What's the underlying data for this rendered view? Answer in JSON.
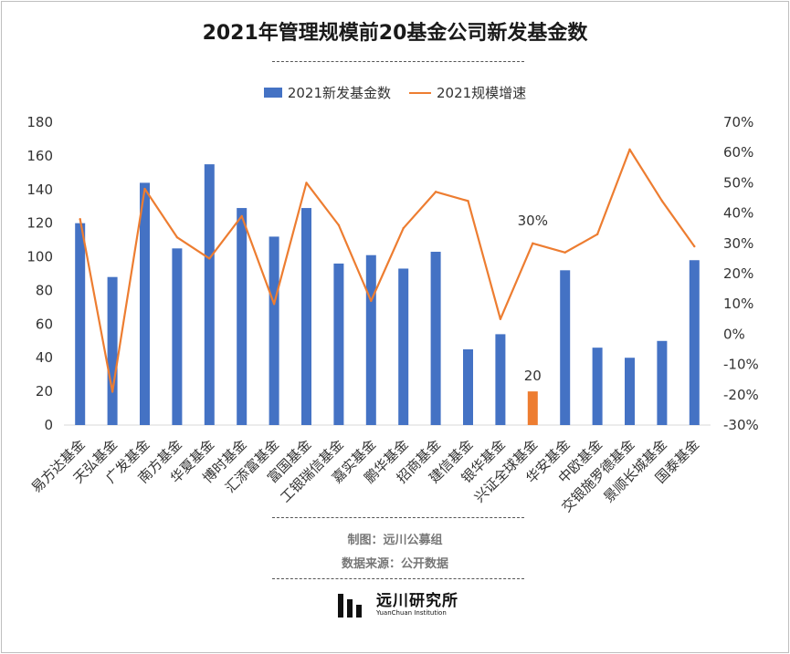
{
  "header": {
    "title": "2021年管理规模前20基金公司新发基金数"
  },
  "chart_data": {
    "type": "bar+line",
    "title": "2021年管理规模前20基金公司新发基金数",
    "categories": [
      "易方达基金",
      "天弘基金",
      "广发基金",
      "南方基金",
      "华夏基金",
      "博时基金",
      "汇添富基金",
      "富国基金",
      "工银瑞信基金",
      "嘉实基金",
      "鹏华基金",
      "招商基金",
      "建信基金",
      "银华基金",
      "兴证全球基金",
      "华安基金",
      "中欧基金",
      "交银施罗德基金",
      "景顺长城基金",
      "国泰基金"
    ],
    "series": [
      {
        "name": "2021新发基金数",
        "kind": "bar",
        "axis": "left",
        "color": "#4472c4",
        "values": [
          120,
          88,
          144,
          105,
          155,
          129,
          112,
          129,
          96,
          101,
          93,
          103,
          45,
          54,
          20,
          92,
          46,
          40,
          50,
          98
        ]
      },
      {
        "name": "2021规模增速",
        "kind": "line",
        "axis": "right",
        "color": "#ed7d31",
        "values": [
          38,
          -19,
          48,
          32,
          25,
          39,
          10,
          50,
          36,
          11,
          35,
          47,
          44,
          5,
          30,
          27,
          33,
          61,
          44,
          29
        ]
      }
    ],
    "highlight": {
      "index": 14,
      "bar_color": "#ed7d31",
      "bar_label": "20",
      "line_label": "30%"
    },
    "y_left": {
      "min": 0,
      "max": 180,
      "step": 20,
      "ticks": [
        "0",
        "20",
        "40",
        "60",
        "80",
        "100",
        "120",
        "140",
        "160",
        "180"
      ]
    },
    "y_right": {
      "min": -30,
      "max": 70,
      "step": 10,
      "ticks": [
        "-30%",
        "-20%",
        "-10%",
        "0%",
        "10%",
        "20%",
        "30%",
        "40%",
        "50%",
        "60%",
        "70%"
      ]
    },
    "legend": [
      "2021新发基金数",
      "2021规模增速"
    ],
    "grid": false
  },
  "footer": {
    "made_by": "制图：远川公募组",
    "source": "数据来源：公开数据",
    "logo_cn": "远川研究所",
    "logo_en": "YuanChuan Institution"
  }
}
